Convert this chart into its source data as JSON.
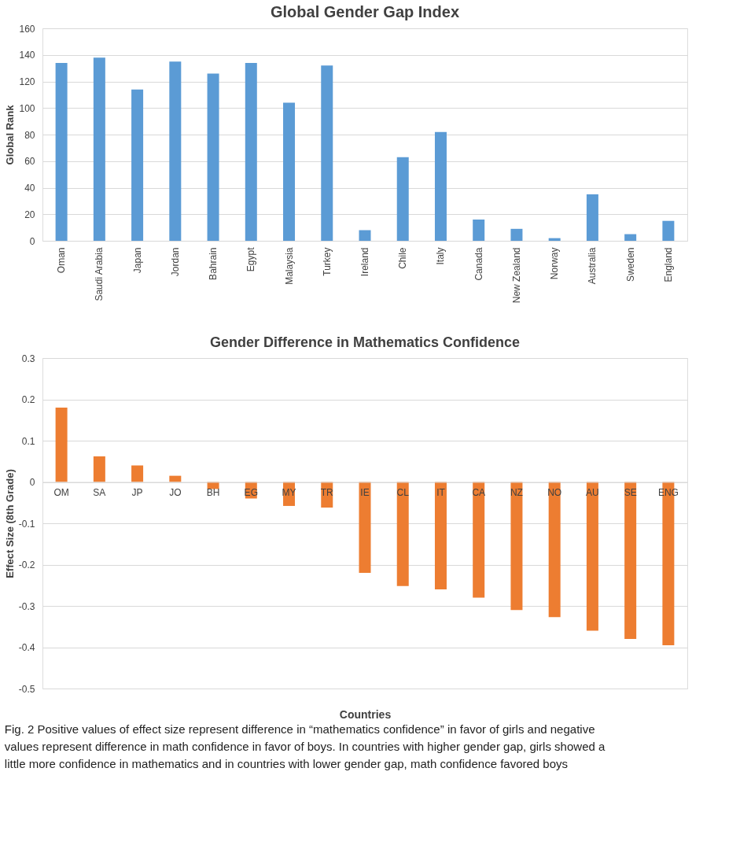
{
  "chart_data": [
    {
      "type": "bar",
      "title": "Global Gender Gap Index",
      "ylabel": "Global Rank",
      "categories": [
        "Oman",
        "Saudi Arabia",
        "Japan",
        "Jordan",
        "Bahrain",
        "Egypt",
        "Malaysia",
        "Turkey",
        "Ireland",
        "Chile",
        "Italy",
        "Canada",
        "New Zealand",
        "Norway",
        "Australia",
        "Sweden",
        "England"
      ],
      "series": [
        {
          "color": "#5b9bd5",
          "values": [
            134,
            138,
            114,
            135,
            126,
            134,
            104,
            132,
            8,
            63,
            82,
            16,
            9,
            2,
            35,
            5,
            15
          ]
        }
      ],
      "ylim": [
        0,
        160
      ],
      "yticks": [
        0,
        20,
        40,
        60,
        80,
        100,
        120,
        140,
        160
      ],
      "grid": "y"
    },
    {
      "type": "bar",
      "title": "Gender Difference in Mathematics Confidence",
      "xlabel": "Countries",
      "ylabel": "Effect Size (8th Grade)",
      "categories": [
        "OM",
        "SA",
        "JP",
        "JO",
        "BH",
        "EG",
        "MY",
        "TR",
        "IE",
        "CL",
        "IT",
        "CA",
        "NZ",
        "NO",
        "AU",
        "SE",
        "ENG"
      ],
      "series": [
        {
          "color": "#ed7d31",
          "values": [
            0.18,
            0.062,
            0.04,
            0.015,
            -0.017,
            -0.04,
            -0.058,
            -0.062,
            -0.22,
            -0.252,
            -0.26,
            -0.28,
            -0.31,
            -0.327,
            -0.36,
            -0.38,
            -0.395
          ]
        }
      ],
      "ylim": [
        -0.5,
        0.3
      ],
      "yticks": [
        0.3,
        0.2,
        0.1,
        {
          "value": 0,
          "label": "0"
        },
        -0.1,
        -0.2,
        -0.3,
        -0.4,
        -0.5
      ],
      "grid": "y",
      "annotations": [
        "Fig. 2  Positive values of effect size represent difference in “mathematics confidence” in favor of girls and negative values represent difference in math confidence in favor of boys. In countries with higher gender gap, girls showed a little more confidence in mathematics and in countries with lower gender gap, math confidence favored boys"
      ]
    }
  ]
}
